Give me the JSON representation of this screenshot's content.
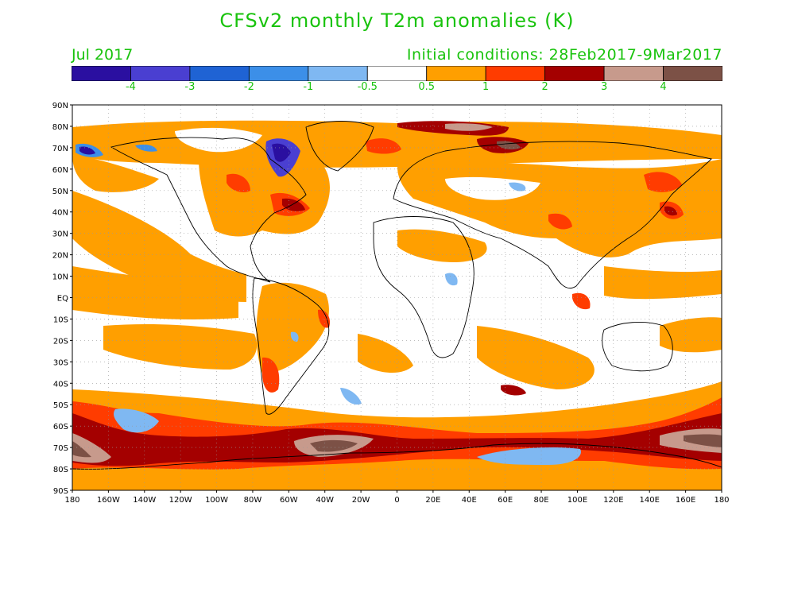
{
  "title": "CFSv2 monthly T2m anomalies (K)",
  "valid_month": "Jul 2017",
  "initial_conditions": "Initial conditions: 28Feb2017-9Mar2017",
  "colorbar": {
    "colors": [
      "#2a0fa0",
      "#4a3fd1",
      "#1f63d4",
      "#3c8fe8",
      "#7fb8f2",
      "#ffffff",
      "#ff9f00",
      "#ff3c00",
      "#a40000",
      "#c79a8c",
      "#7c5146"
    ],
    "labels": [
      "-4",
      "-3",
      "-2",
      "-1",
      "-0.5",
      "0.5",
      "1",
      "2",
      "3",
      "4"
    ]
  },
  "lat_labels": [
    "90N",
    "80N",
    "70N",
    "60N",
    "50N",
    "40N",
    "30N",
    "20N",
    "10N",
    "EQ",
    "10S",
    "20S",
    "30S",
    "40S",
    "50S",
    "60S",
    "70S",
    "80S",
    "90S"
  ],
  "lon_labels": [
    "180",
    "160W",
    "140W",
    "120W",
    "100W",
    "80W",
    "60W",
    "40W",
    "20W",
    "0",
    "20E",
    "40E",
    "60E",
    "80E",
    "100E",
    "120E",
    "140E",
    "160E",
    "180"
  ]
}
